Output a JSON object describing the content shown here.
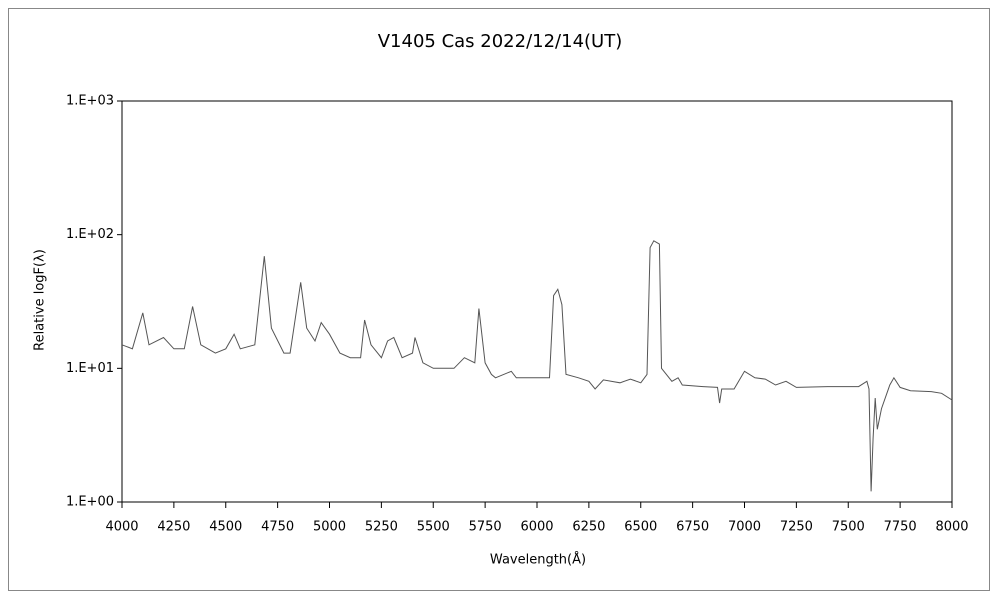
{
  "chart_data": {
    "type": "line",
    "title": "V1405 Cas    2022/12/14(UT)",
    "x_label": "Wavelength(Å)",
    "y_label": "Relative logF(λ)",
    "log_y": true,
    "grid": false,
    "color": "#555555",
    "x": [
      4000,
      4050,
      4100,
      4130,
      4200,
      4250,
      4300,
      4340,
      4380,
      4450,
      4500,
      4540,
      4570,
      4640,
      4686,
      4720,
      4780,
      4810,
      4861,
      4890,
      4930,
      4960,
      5000,
      5050,
      5100,
      5150,
      5169,
      5200,
      5250,
      5280,
      5310,
      5350,
      5400,
      5412,
      5450,
      5500,
      5600,
      5650,
      5700,
      5720,
      5750,
      5780,
      5800,
      5876,
      5900,
      6000,
      6060,
      6080,
      6100,
      6120,
      6140,
      6200,
      6250,
      6280,
      6320,
      6400,
      6450,
      6500,
      6530,
      6545,
      6563,
      6590,
      6600,
      6650,
      6680,
      6700,
      6800,
      6870,
      6880,
      6890,
      6950,
      7000,
      7050,
      7100,
      7150,
      7200,
      7250,
      7400,
      7550,
      7590,
      7600,
      7610,
      7620,
      7630,
      7640,
      7660,
      7700,
      7720,
      7750,
      7800,
      7900,
      7950,
      8000
    ],
    "values": [
      15,
      14,
      26,
      15,
      17,
      14,
      14,
      29,
      15,
      13,
      14,
      18,
      14,
      15,
      69,
      20,
      13,
      13,
      44,
      20,
      16,
      22,
      18,
      13,
      12,
      12,
      23,
      15,
      12,
      16,
      17,
      12,
      13,
      17,
      11,
      10,
      10,
      12,
      11,
      28,
      11,
      9,
      8.5,
      9.5,
      8.5,
      8.5,
      8.5,
      35,
      39,
      30,
      9,
      8.5,
      8,
      7,
      8.2,
      7.8,
      8.3,
      7.8,
      9,
      80,
      90,
      85,
      10,
      8,
      8.5,
      7.5,
      7.3,
      7.2,
      5.5,
      7,
      7,
      9.5,
      8.5,
      8.3,
      7.5,
      8,
      7.2,
      7.3,
      7.3,
      8,
      7,
      1.2,
      3,
      6,
      3.5,
      5,
      7.5,
      8.5,
      7.2,
      6.8,
      6.7,
      6.5,
      5.8
    ],
    "xlim": [
      4000,
      8000
    ],
    "xticks": [
      4000,
      4250,
      4500,
      4750,
      5000,
      5250,
      5500,
      5750,
      6000,
      6250,
      6500,
      6750,
      7000,
      7250,
      7500,
      7750,
      8000
    ],
    "ylim": [
      1,
      1000
    ],
    "yticks": [
      {
        "value": 1,
        "label": "1.E+00"
      },
      {
        "value": 10,
        "label": "1.E+01"
      },
      {
        "value": 100,
        "label": "1.E+02"
      },
      {
        "value": 1000,
        "label": "1.E+03"
      }
    ]
  }
}
